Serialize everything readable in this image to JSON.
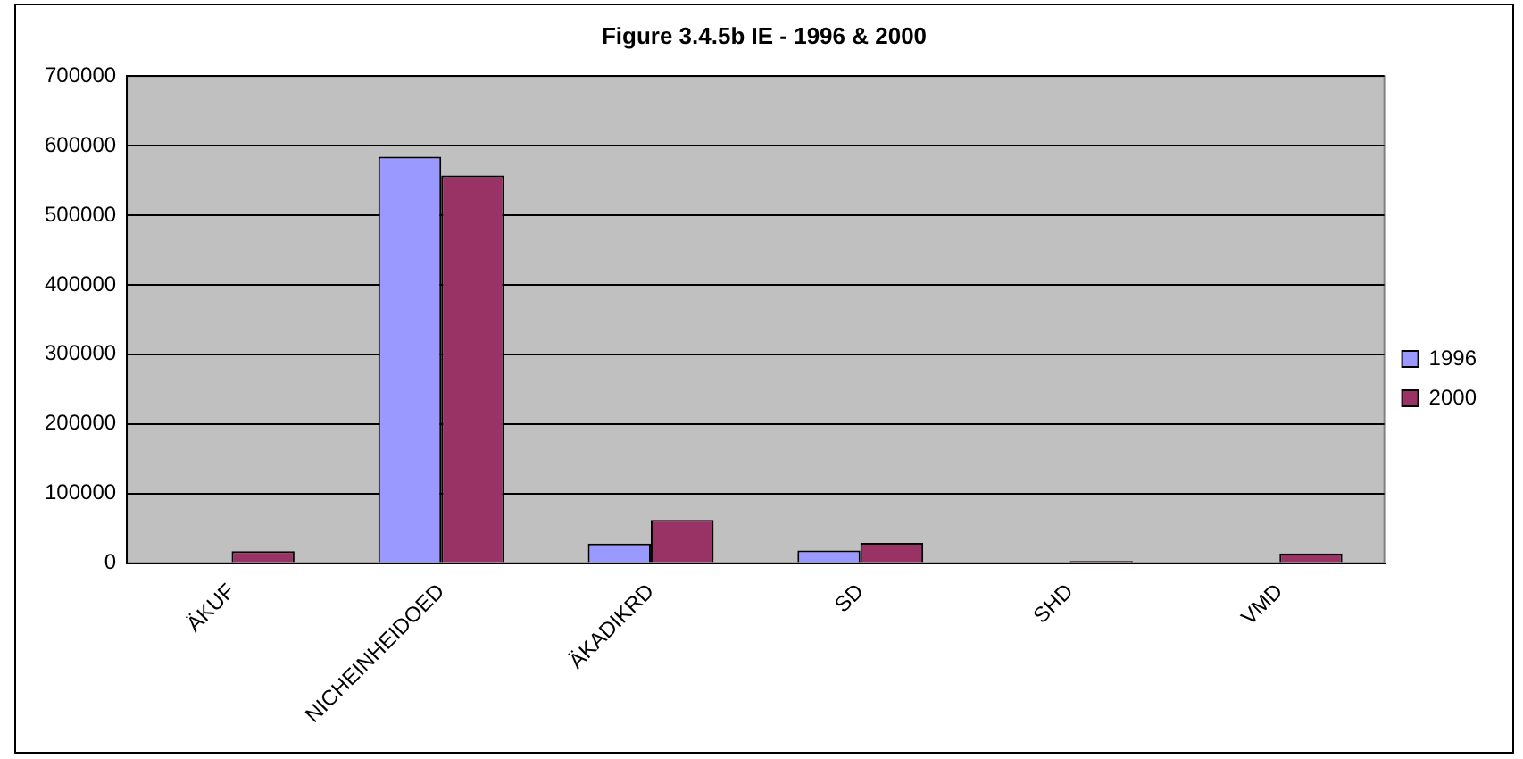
{
  "chart_data": {
    "type": "bar",
    "title": "Figure 3.4.5b IE - 1996 & 2000",
    "categories": [
      "ÄKUF",
      "NICHEINHEIDOED",
      "ÄKADIKRD",
      "SD",
      "SHD",
      "VMD"
    ],
    "series": [
      {
        "name": "1996",
        "color": "#9999ff",
        "values": [
          null,
          584000,
          28000,
          18000,
          null,
          0
        ]
      },
      {
        "name": "2000",
        "color": "#993366",
        "values": [
          17000,
          557000,
          62000,
          29000,
          3000,
          14000
        ]
      }
    ],
    "ylim": [
      0,
      700000
    ],
    "yticks": [
      0,
      100000,
      200000,
      300000,
      400000,
      500000,
      600000,
      700000
    ],
    "grid": "y",
    "legend": "right"
  }
}
